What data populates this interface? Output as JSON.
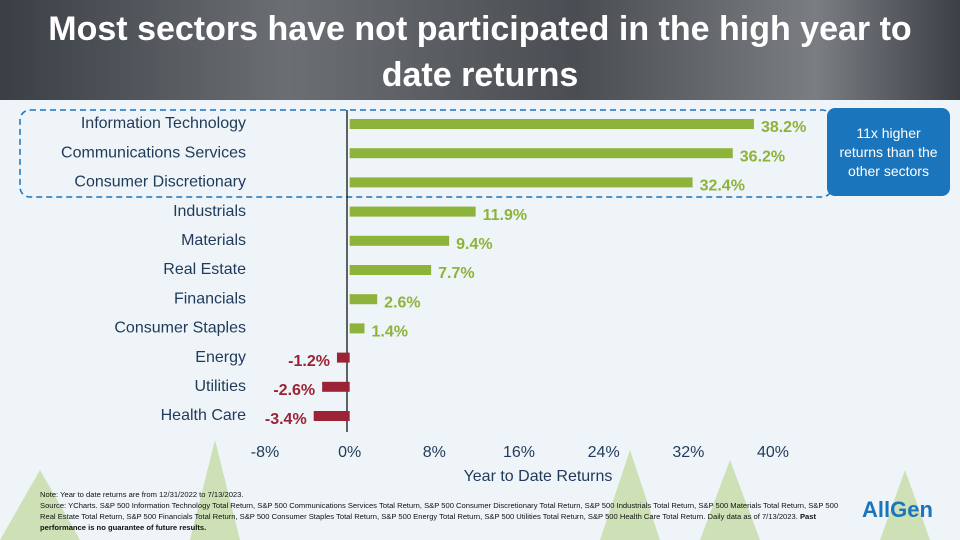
{
  "chart_data": {
    "type": "hbar",
    "title": "Most sectors have not participated in the high year to date returns",
    "categories": [
      "Information Technology",
      "Communications Services",
      "Consumer Discretionary",
      "Industrials",
      "Materials",
      "Real Estate",
      "Financials",
      "Consumer Staples",
      "Energy",
      "Utilities",
      "Health Care"
    ],
    "values": [
      38.2,
      36.2,
      32.4,
      11.9,
      9.4,
      7.7,
      2.6,
      1.4,
      -1.2,
      -2.6,
      -3.4
    ],
    "value_labels": [
      "38.2%",
      "36.2%",
      "32.4%",
      "11.9%",
      "9.4%",
      "7.7%",
      "2.6%",
      "1.4%",
      "-1.2%",
      "-2.6%",
      "-3.4%"
    ],
    "colors": [
      "#8db33a",
      "#8db33a",
      "#8db33a",
      "#8db33a",
      "#8db33a",
      "#8db33a",
      "#8db33a",
      "#8db33a",
      "#9b2335",
      "#9b2335",
      "#9b2335"
    ],
    "xlim": [
      -8,
      40
    ],
    "xticks": [
      {
        "value": -8,
        "label": "-8%"
      },
      {
        "value": 0,
        "label": "0%"
      },
      {
        "value": 8,
        "label": "8%"
      },
      {
        "value": 16,
        "label": "16%"
      },
      {
        "value": 24,
        "label": "24%"
      },
      {
        "value": 32,
        "label": "32%"
      },
      {
        "value": 40,
        "label": "40%"
      }
    ],
    "xlabel": "Year to Date Returns",
    "callout": "11x higher returns than the other sectors"
  },
  "note": "Note: Year to date returns are from 12/31/2022 to 7/13/2023.",
  "source": "Source: YCharts. S&P 500 Information Technology Total Return, S&P 500 Communications Services Total Return, S&P 500 Consumer Discretionary Total Return, S&P 500 Industrials Total Return, S&P 500 Materials Total Return, S&P 500 Real Estate Total Return, S&P 500 Financials Total Return, S&P 500 Consumer Staples Total Return, S&P 500 Energy Total Return, S&P 500 Utilities Total Return, S&P 500 Health Care Total Return. Daily data as of 7/13/2023.",
  "disclaimer": "Past performance is no guarantee of future results.",
  "logo": "AllGen"
}
